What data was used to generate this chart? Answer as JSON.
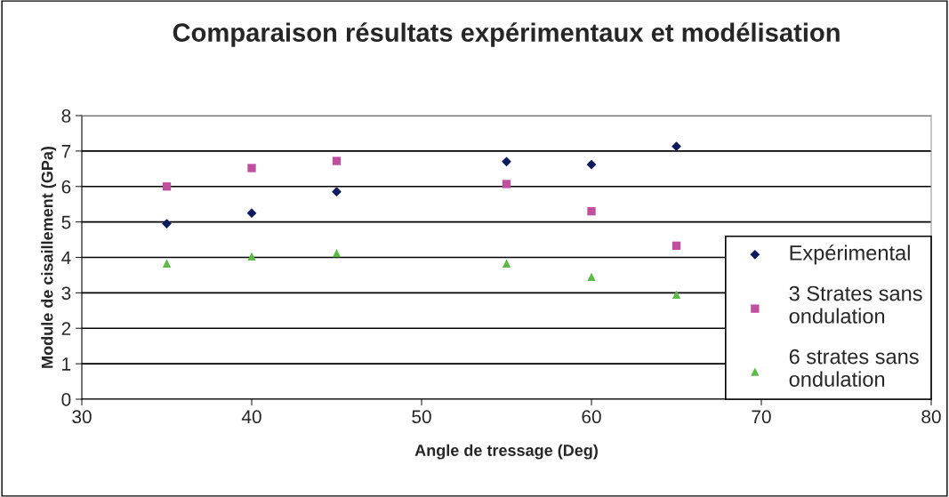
{
  "chart_data": {
    "type": "scatter",
    "title": "Comparaison résultats expérimentaux et modélisation",
    "xlabel": "Angle de tressage (Deg)",
    "ylabel": "Module de cisaillement (GPa)",
    "x": [
      35,
      40,
      45,
      55,
      60,
      65
    ],
    "series": [
      {
        "name": "Expérimental",
        "color": "#0d1a5e",
        "marker": "diamond",
        "values": [
          4.95,
          5.25,
          5.85,
          6.7,
          6.62,
          7.13
        ]
      },
      {
        "name": "3 Strates sans\nondulation",
        "color": "#c04fa0",
        "marker": "square",
        "values": [
          6.0,
          6.52,
          6.72,
          6.07,
          5.3,
          4.33
        ]
      },
      {
        "name": "6 strates sans\nondulation",
        "color": "#5cba47",
        "marker": "triangle",
        "values": [
          3.83,
          4.03,
          4.12,
          3.83,
          3.45,
          2.95
        ]
      }
    ],
    "xlim": [
      30,
      80
    ],
    "xticks": [
      30,
      40,
      50,
      60,
      70,
      80
    ],
    "ylim": [
      0,
      8
    ],
    "yticks": [
      0,
      1,
      2,
      3,
      4,
      5,
      6,
      7,
      8
    ],
    "grid": "y",
    "legend": "bottom right"
  }
}
